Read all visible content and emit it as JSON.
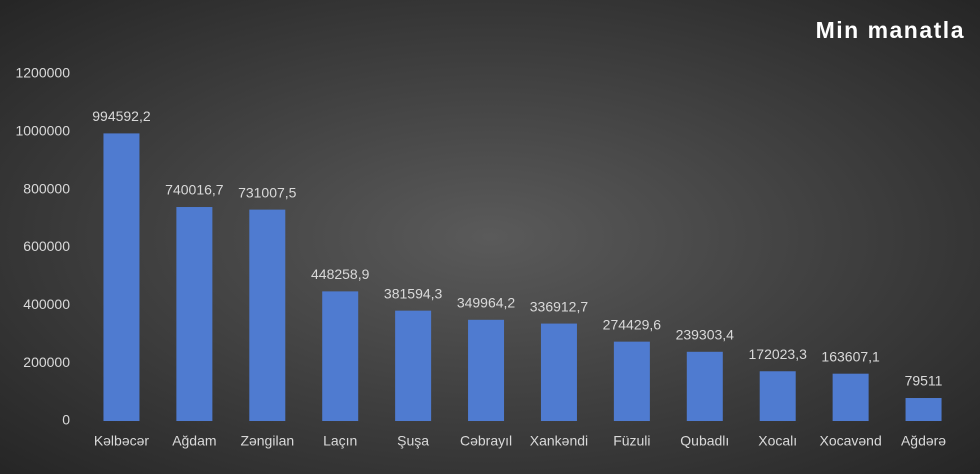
{
  "chart_data": {
    "type": "bar",
    "title": "Min manatla",
    "categories": [
      "Kəlbəcər",
      "Ağdam",
      "Zəngilan",
      "Laçın",
      "Şuşa",
      "Cəbrayıl",
      "Xankəndi",
      "Füzuli",
      "Qubadlı",
      "Xocalı",
      "Xocavənd",
      "Ağdərə"
    ],
    "values": [
      994592.2,
      740016.7,
      731007.5,
      448258.9,
      381594.3,
      349964.2,
      336912.7,
      274429.6,
      239303.4,
      172023.3,
      163607.1,
      79511
    ],
    "value_labels": [
      "994592,2",
      "740016,7",
      "731007,5",
      "448258,9",
      "381594,3",
      "349964,2",
      "336912,7",
      "274429,6",
      "239303,4",
      "172023,3",
      "163607,1",
      "79511"
    ],
    "color": "#4f7bd0",
    "ylim": [
      0,
      1200000
    ],
    "yticks": [
      0,
      200000,
      400000,
      600000,
      800000,
      1000000,
      1200000
    ],
    "grid": false
  }
}
